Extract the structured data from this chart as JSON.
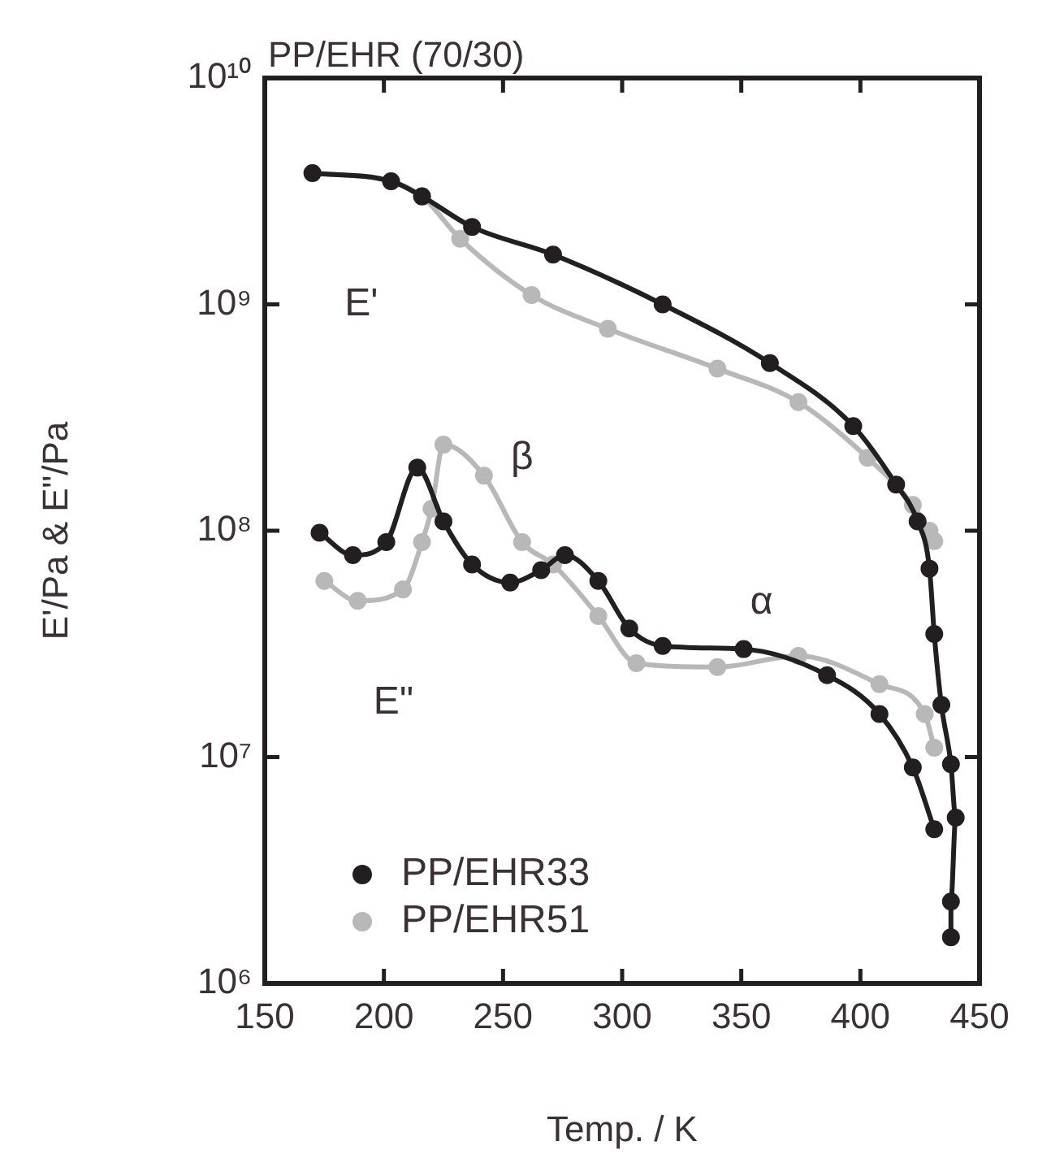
{
  "chart_data": {
    "type": "line",
    "title": "PP/EHR (70/30)",
    "xlabel": "Temp. / K",
    "ylabel": "E'/Pa & E\"/Pa",
    "xlim": [
      150,
      450
    ],
    "xticks": [
      150,
      200,
      250,
      300,
      350,
      400,
      450
    ],
    "ylim": [
      1000000,
      10000000000
    ],
    "yticks": [
      {
        "value": 1000000,
        "label": "10⁶"
      },
      {
        "value": 10000000,
        "label": "10⁷"
      },
      {
        "value": 100000000,
        "label": "10⁸"
      },
      {
        "value": 1000000000,
        "label": "10⁹"
      },
      {
        "value": 10000000000,
        "label": "10¹⁰"
      }
    ],
    "log": "y",
    "grid": false,
    "legend": "bottom left",
    "marker": "circle",
    "series": [
      {
        "name": "PP/EHR33",
        "color": "#231f20",
        "x": [
          170,
          203,
          216,
          237,
          271,
          317,
          362,
          397,
          415,
          424,
          429,
          431,
          434,
          438,
          440,
          438,
          438
        ],
        "values": [
          3800000000,
          3500000000,
          3000000000,
          2200000000,
          1660000000,
          1000000000,
          550000000,
          290000000,
          160000000,
          110000000,
          68000000,
          35000000,
          17000000,
          9300000,
          5400000,
          2300000,
          1600000
        ]
      },
      {
        "color": "#231f20",
        "x": [
          173,
          187,
          201,
          214,
          225,
          237,
          253,
          266,
          276,
          290,
          303,
          317,
          351,
          386,
          408,
          422,
          431
        ],
        "values": [
          98000000,
          78000000,
          89000000,
          190000000,
          110000000,
          71000000,
          59000000,
          67000000,
          78000000,
          60000000,
          37000000,
          31000000,
          30000000,
          23000000,
          15500000,
          9000000,
          4800000
        ]
      },
      {
        "name": "PP/EHR51",
        "color": "#b8b8b8",
        "x": [
          170,
          203,
          216,
          232,
          262,
          294,
          340,
          374,
          403,
          422,
          429,
          431
        ],
        "values": [
          3800000000,
          3500000000,
          3000000000,
          1950000000,
          1100000000,
          780000000,
          520000000,
          370000000,
          210000000,
          130000000,
          100000000,
          90000000
        ]
      },
      {
        "color": "#b8b8b8",
        "x": [
          175,
          189,
          208,
          216,
          220,
          225,
          242,
          258,
          271,
          290,
          306,
          340,
          374,
          408,
          427,
          431
        ],
        "values": [
          60000000,
          49000000,
          55000000,
          89000000,
          125000000,
          240000000,
          175000000,
          89000000,
          71000000,
          42000000,
          26000000,
          25000000,
          28000000,
          21000000,
          15500000,
          11000000
        ]
      }
    ],
    "annotations": [
      "E'",
      "E\"",
      "β",
      "α"
    ]
  }
}
